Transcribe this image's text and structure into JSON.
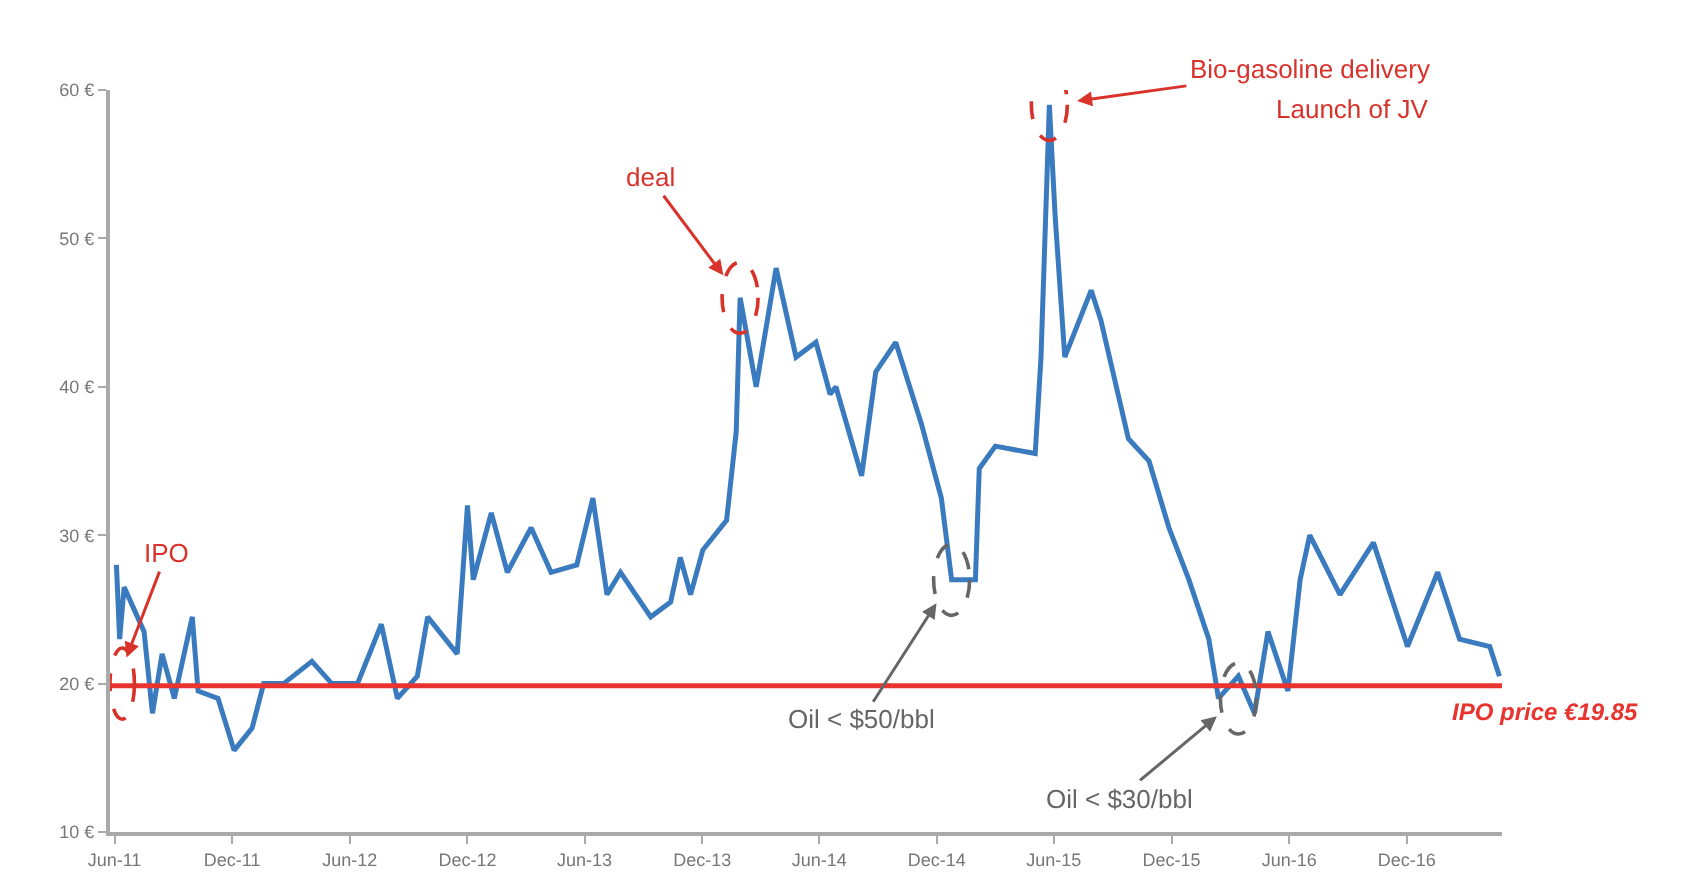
{
  "chart_data": {
    "type": "line",
    "x": [
      "2011-06-04",
      "2011-06-09",
      "2011-06-16",
      "2011-07-17",
      "2011-07-30",
      "2011-08-14",
      "2011-09-02",
      "2011-09-30",
      "2011-10-09",
      "2011-11-09",
      "2011-12-04",
      "2012-01-01",
      "2012-01-19",
      "2012-02-19",
      "2012-04-03",
      "2012-05-04",
      "2012-06-13",
      "2012-07-20",
      "2012-08-14",
      "2012-09-14",
      "2012-09-30",
      "2012-11-15",
      "2012-12-01",
      "2012-12-10",
      "2013-01-07",
      "2013-02-01",
      "2013-03-10",
      "2013-04-10",
      "2013-05-20",
      "2013-06-14",
      "2013-07-06",
      "2013-07-27",
      "2013-09-12",
      "2013-10-13",
      "2013-10-28",
      "2013-11-13",
      "2013-12-02",
      "2014-01-08",
      "2014-01-23",
      "2014-01-29",
      "2014-02-23",
      "2014-03-26",
      "2014-04-26",
      "2014-05-27",
      "2014-06-18",
      "2014-06-27",
      "2014-08-06",
      "2014-08-28",
      "2014-09-28",
      "2014-11-07",
      "2014-12-08",
      "2014-12-24",
      "2015-01-30",
      "2015-02-05",
      "2015-03-02",
      "2015-05-03",
      "2015-05-12",
      "2015-05-25",
      "2015-06-03",
      "2015-06-18",
      "2015-07-29",
      "2015-08-13",
      "2015-09-25",
      "2015-10-27",
      "2015-11-27",
      "2015-12-28",
      "2016-01-28",
      "2016-02-12",
      "2016-03-14",
      "2016-04-08",
      "2016-04-29",
      "2016-05-30",
      "2016-06-18",
      "2016-07-03",
      "2016-08-19",
      "2016-10-10",
      "2016-12-02",
      "2017-01-18",
      "2017-02-21",
      "2017-04-09",
      "2017-04-24"
    ],
    "series": [
      {
        "color": "#3a7bbf",
        "values": [
          28,
          23,
          26.5,
          23.5,
          18,
          22,
          19,
          24.5,
          19.5,
          19,
          15.5,
          17,
          20,
          20,
          21.5,
          20,
          20,
          24,
          19,
          20.5,
          24.5,
          22,
          32,
          27,
          31.5,
          27.5,
          30.5,
          27.5,
          28,
          32.5,
          26,
          27.5,
          24.5,
          25.5,
          28.5,
          26,
          29,
          31,
          37,
          46,
          40,
          48,
          42,
          43,
          39.5,
          40,
          34,
          41,
          43,
          37.5,
          32.5,
          27,
          27,
          34.5,
          36,
          35.5,
          42,
          59,
          51.5,
          42,
          46.5,
          44.5,
          36.5,
          35,
          30.5,
          27,
          23,
          19,
          20.5,
          18,
          23.5,
          19.5,
          27,
          30,
          26,
          29.5,
          22.5,
          27.5,
          23,
          22.5,
          20.5
        ]
      }
    ],
    "xlim": [
      "2011-05-25",
      "2017-04-28"
    ],
    "xticks": [
      {
        "value": "2011-06-01",
        "label": "Jun-11"
      },
      {
        "value": "2011-12-01",
        "label": "Dec-11"
      },
      {
        "value": "2012-06-01",
        "label": "Jun-12"
      },
      {
        "value": "2012-12-01",
        "label": "Dec-12"
      },
      {
        "value": "2013-06-01",
        "label": "Jun-13"
      },
      {
        "value": "2013-12-01",
        "label": "Dec-13"
      },
      {
        "value": "2014-06-01",
        "label": "Jun-14"
      },
      {
        "value": "2014-12-01",
        "label": "Dec-14"
      },
      {
        "value": "2015-06-01",
        "label": "Jun-15"
      },
      {
        "value": "2015-12-01",
        "label": "Dec-15"
      },
      {
        "value": "2016-06-01",
        "label": "Jun-16"
      },
      {
        "value": "2016-12-01",
        "label": "Dec-16"
      }
    ],
    "ylim": [
      10,
      60
    ],
    "yticks": [
      {
        "value": 10,
        "label": "10 €"
      },
      {
        "value": 20,
        "label": "20 €"
      },
      {
        "value": 30,
        "label": "30 €"
      },
      {
        "value": 40,
        "label": "40 €"
      },
      {
        "value": 50,
        "label": "50 €"
      },
      {
        "value": 60,
        "label": "60 €"
      }
    ],
    "grid": false,
    "ref_lines": [
      {
        "axis": "y",
        "value": 19.85,
        "label": "IPO price €19.85",
        "color": "#e8332e"
      }
    ],
    "annotations": [
      {
        "text": "IPO",
        "x": "2011-06-04",
        "y": 20
      },
      {
        "text": "deal",
        "x": "2014-01-29",
        "y": 46
      },
      {
        "text": "Bio-gasoline delivery",
        "x": "2015-05-25",
        "y": 59
      },
      "Launch of JV",
      {
        "text": "Oil < $50/bbl",
        "x": "2014-12-24",
        "y": 27
      },
      {
        "text": "Oil < $30/bbl",
        "x": "2016-03-14",
        "y": 19
      }
    ]
  }
}
